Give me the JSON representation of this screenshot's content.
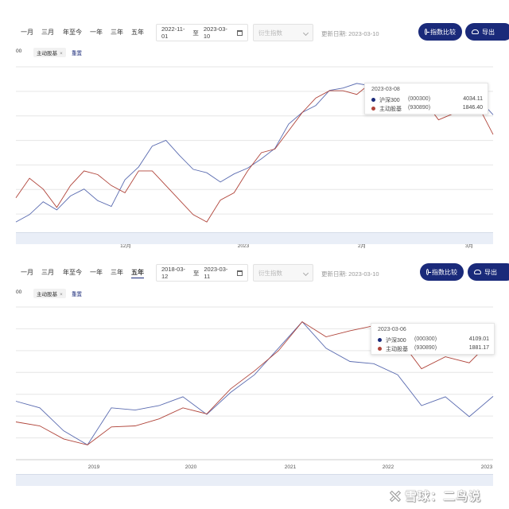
{
  "colors": {
    "accent": "#1a2a7a",
    "hs300": "#5a6bb0",
    "active_fund": "#b0443a",
    "grid": "#e6e6e6"
  },
  "top": {
    "ranges": [
      "一月",
      "三月",
      "年至今",
      "一年",
      "三年",
      "五年"
    ],
    "active_range": null,
    "date_start": "2022-11-01",
    "date_sep": "至",
    "date_end": "2023-03-10",
    "select_placeholder": "衍生指数",
    "update_date": "更新日期: 2023-03-10",
    "btn_compare": "指数比较",
    "btn_export": "导出",
    "tag_left": "00",
    "tag_main": "主动股基",
    "tag_close": "×",
    "reset": "重置",
    "x_ticks": [
      "12月",
      "2023",
      "2月",
      "3月"
    ],
    "tooltip": {
      "date": "2023-03-08",
      "rows": [
        {
          "name": "沪深300",
          "code": "(000300)",
          "value": "4034.11",
          "color": "#1a2a7a"
        },
        {
          "name": "主动股基",
          "code": "(930890)",
          "value": "1846.40",
          "color": "#b0443a"
        }
      ]
    }
  },
  "bottom": {
    "ranges": [
      "一月",
      "三月",
      "年至今",
      "一年",
      "三年",
      "五年"
    ],
    "active_range": "五年",
    "date_start": "2018-03-12",
    "date_sep": "至",
    "date_end": "2023-03-11",
    "select_placeholder": "衍生指数",
    "update_date": "更新日期: 2023-03-10",
    "btn_compare": "指数比较",
    "btn_export": "导出",
    "tag_left": "00",
    "tag_main": "主动股基",
    "tag_close": "×",
    "reset": "重置",
    "x_ticks": [
      "2019",
      "2020",
      "2021",
      "2022",
      "2023"
    ],
    "tooltip": {
      "date": "2023-03-06",
      "rows": [
        {
          "name": "沪深300",
          "code": "(000300)",
          "value": "4109.01",
          "color": "#1a2a7a"
        },
        {
          "name": "主动股基",
          "code": "(930890)",
          "value": "1881.17",
          "color": "#b0443a"
        }
      ]
    }
  },
  "watermark": "雪球：二鸟说",
  "chart_data": [
    {
      "type": "line",
      "title": "",
      "x": [
        "2022-11-01",
        "2022-11-03",
        "2022-11-07",
        "2022-11-10",
        "2022-11-14",
        "2022-11-17",
        "2022-11-21",
        "2022-11-24",
        "2022-11-28",
        "2022-12-01",
        "2022-12-05",
        "2022-12-08",
        "2022-12-12",
        "2022-12-15",
        "2022-12-19",
        "2022-12-22",
        "2022-12-26",
        "2022-12-29",
        "2023-01-03",
        "2023-01-06",
        "2023-01-10",
        "2023-01-13",
        "2023-01-17",
        "2023-01-20",
        "2023-01-30",
        "2023-02-02",
        "2023-02-06",
        "2023-02-09",
        "2023-02-13",
        "2023-02-16",
        "2023-02-20",
        "2023-02-23",
        "2023-02-27",
        "2023-03-02",
        "2023-03-06",
        "2023-03-10"
      ],
      "series": [
        {
          "name": "沪深300",
          "values": [
            3508,
            3540,
            3595,
            3560,
            3620,
            3650,
            3600,
            3575,
            3690,
            3745,
            3835,
            3860,
            3795,
            3735,
            3720,
            3680,
            3715,
            3740,
            3780,
            3825,
            3930,
            3980,
            4010,
            4075,
            4085,
            4105,
            4095,
            4065,
            4055,
            4080,
            4090,
            4000,
            3995,
            4025,
            4034,
            3970
          ]
        },
        {
          "name": "主动股基",
          "values": [
            1723,
            1750,
            1735,
            1710,
            1740,
            1760,
            1755,
            1740,
            1730,
            1760,
            1760,
            1740,
            1720,
            1700,
            1690,
            1720,
            1730,
            1760,
            1785,
            1790,
            1815,
            1840,
            1860,
            1870,
            1870,
            1865,
            1880,
            1860,
            1855,
            1865,
            1855,
            1830,
            1838,
            1845,
            1846,
            1810
          ]
        }
      ],
      "xlabel": "",
      "ylabel": ""
    },
    {
      "type": "line",
      "title": "",
      "x": [
        "2018-03",
        "2018-06",
        "2018-09",
        "2018-12",
        "2019-03",
        "2019-06",
        "2019-09",
        "2019-12",
        "2020-03",
        "2020-06",
        "2020-09",
        "2020-12",
        "2021-02",
        "2021-05",
        "2021-08",
        "2021-11",
        "2022-02",
        "2022-05",
        "2022-08",
        "2022-11",
        "2023-03"
      ],
      "series": [
        {
          "name": "沪深300",
          "values": [
            4000,
            3850,
            3330,
            3010,
            3850,
            3800,
            3900,
            4100,
            3700,
            4200,
            4600,
            5200,
            5800,
            5200,
            4900,
            4850,
            4600,
            3900,
            4100,
            3650,
            4109
          ]
        },
        {
          "name": "主动股基",
          "values": [
            1050,
            1010,
            880,
            820,
            1000,
            1010,
            1080,
            1190,
            1130,
            1380,
            1560,
            1760,
            2050,
            1900,
            1960,
            2010,
            1900,
            1580,
            1700,
            1640,
            1881
          ]
        }
      ],
      "xlabel": "",
      "ylabel": ""
    }
  ]
}
